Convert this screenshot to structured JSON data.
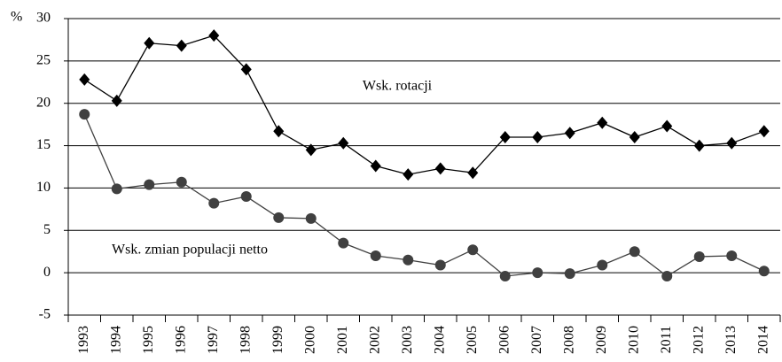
{
  "chart_data": {
    "type": "line",
    "y_label": "%",
    "categories": [
      "1993",
      "1994",
      "1995",
      "1996",
      "1997",
      "1998",
      "1999",
      "2000",
      "2001",
      "2002",
      "2003",
      "2004",
      "2005",
      "2006",
      "2007",
      "2008",
      "2009",
      "2010",
      "2011",
      "2012",
      "2013",
      "2014"
    ],
    "series": [
      {
        "name": "Wsk. rotacji",
        "color": "#000000",
        "marker": "diamond",
        "values": [
          22.8,
          20.3,
          27.1,
          26.8,
          28.0,
          24.0,
          16.7,
          14.5,
          15.3,
          12.6,
          11.6,
          12.3,
          11.8,
          16.0,
          16.0,
          16.5,
          17.7,
          16.0,
          17.3,
          15.0,
          15.3,
          16.7
        ]
      },
      {
        "name": "Wsk. zmian populacji netto",
        "color": "#404040",
        "marker": "circle",
        "values": [
          18.7,
          9.9,
          10.4,
          10.7,
          8.2,
          9.0,
          6.5,
          6.4,
          3.5,
          2.0,
          1.5,
          0.9,
          2.7,
          -0.4,
          0.0,
          -0.1,
          0.9,
          2.5,
          -0.4,
          1.9,
          2.0,
          0.2
        ]
      }
    ],
    "ylim": [
      -5,
      30
    ],
    "yticks": [
      -5,
      0,
      5,
      10,
      15,
      20,
      25,
      30
    ],
    "grid": true,
    "legend": "inline"
  }
}
